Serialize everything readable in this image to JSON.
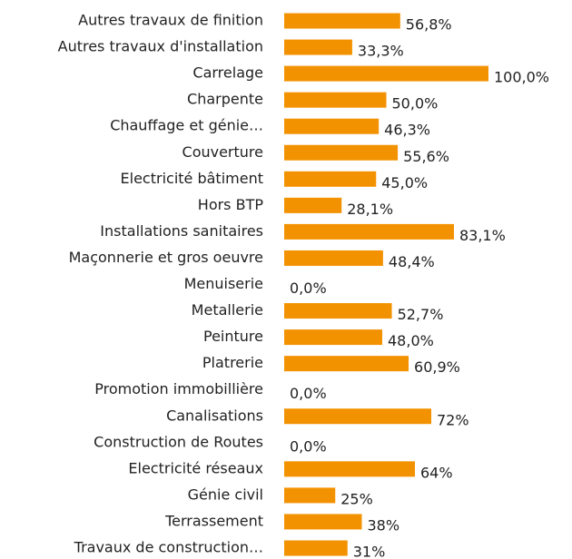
{
  "chart_data": {
    "type": "bar",
    "orientation": "horizontal",
    "color": "#f39200",
    "categories": [
      "Autres travaux de finition",
      "Autres travaux d'installation",
      "Carrelage",
      "Charpente",
      "Chauffage et génie…",
      "Couverture",
      "Electricité bâtiment",
      "Hors BTP",
      "Installations sanitaires",
      "Maçonnerie et gros oeuvre",
      "Menuiserie",
      "Metallerie",
      "Peinture",
      "Platrerie",
      "Promotion immobillière",
      "Canalisations",
      "Construction de Routes",
      "Electricité réseaux",
      "Génie civil",
      "Terrassement",
      "Travaux de construction…"
    ],
    "values": [
      56.8,
      33.3,
      100.0,
      50.0,
      46.3,
      55.6,
      45.0,
      28.1,
      83.1,
      48.4,
      0.0,
      52.7,
      48.0,
      60.9,
      0.0,
      72,
      0.0,
      64,
      25,
      38,
      31
    ],
    "value_labels": [
      "56,8%",
      "33,3%",
      "100,0%",
      "50,0%",
      "46,3%",
      "55,6%",
      "45,0%",
      "28,1%",
      "83,1%",
      "48,4%",
      "0,0%",
      "52,7%",
      "48,0%",
      "60,9%",
      "0,0%",
      "72%",
      "0,0%",
      "64%",
      "25%",
      "38%",
      "31%"
    ]
  }
}
